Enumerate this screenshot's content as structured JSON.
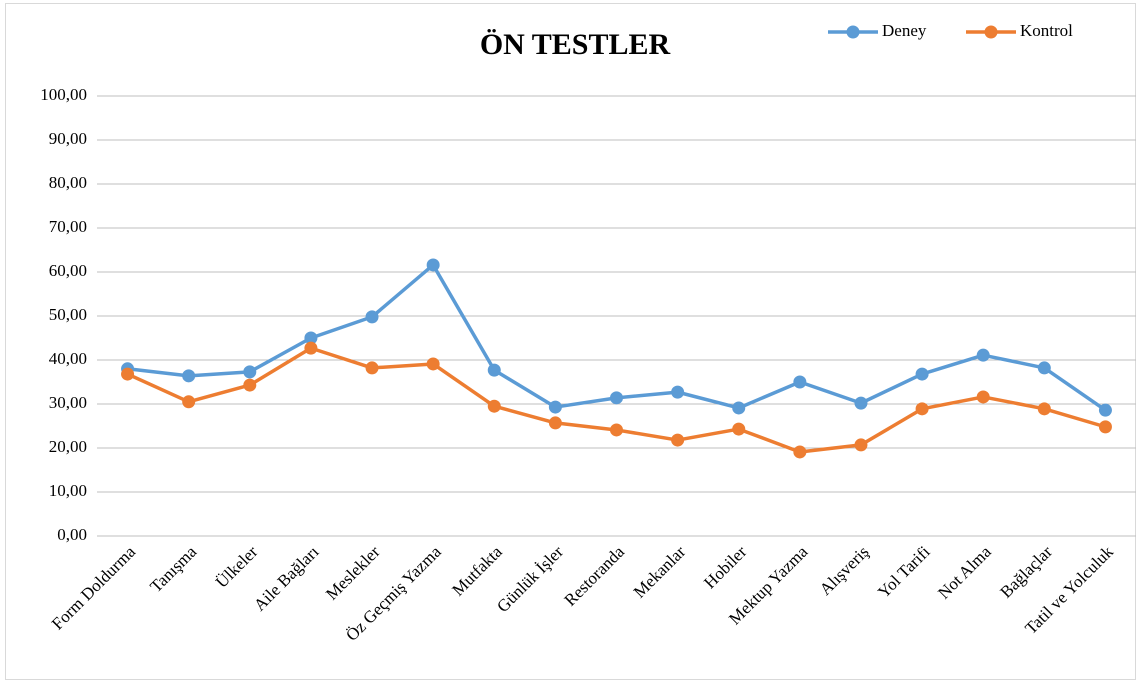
{
  "chart_data": {
    "type": "line",
    "title": "ÖN TESTLER",
    "categories": [
      "Form Doldurma",
      "Tanışma",
      "Ülkeler",
      "Aile Bağları",
      "Meslekler",
      "Öz Geçmiş Yazma",
      "Mutfakta",
      "Günlük İşler",
      "Restoranda",
      "Mekanlar",
      "Hobiler",
      "Mektup Yazma",
      "Alışveriş",
      "Yol Tarifi",
      "Not Alma",
      "Bağlaçlar",
      "Tatil ve Yolculuk"
    ],
    "series": [
      {
        "name": "Deney",
        "color": "#5b9bd5",
        "values": [
          38.0,
          36.4,
          37.3,
          45.0,
          49.8,
          61.6,
          37.7,
          29.3,
          31.4,
          32.7,
          29.1,
          35.0,
          30.2,
          36.8,
          41.1,
          38.2,
          28.6
        ]
      },
      {
        "name": "Kontrol",
        "color": "#ed7d31",
        "values": [
          36.8,
          30.5,
          34.3,
          42.7,
          38.2,
          39.1,
          29.5,
          25.7,
          24.1,
          21.8,
          24.3,
          19.1,
          20.7,
          28.9,
          31.6,
          28.9,
          24.8
        ]
      }
    ],
    "ylim": [
      0,
      100
    ],
    "yticks": [
      {
        "value": 0,
        "label": "0,00"
      },
      {
        "value": 10,
        "label": "10,00"
      },
      {
        "value": 20,
        "label": "20,00"
      },
      {
        "value": 30,
        "label": "30,00"
      },
      {
        "value": 40,
        "label": "40,00"
      },
      {
        "value": 50,
        "label": "50,00"
      },
      {
        "value": 60,
        "label": "60,00"
      },
      {
        "value": 70,
        "label": "70,00"
      },
      {
        "value": 80,
        "label": "80,00"
      },
      {
        "value": 90,
        "label": "90,00"
      },
      {
        "value": 100,
        "label": "100,00"
      }
    ],
    "grid": true,
    "legend": "top-right"
  }
}
